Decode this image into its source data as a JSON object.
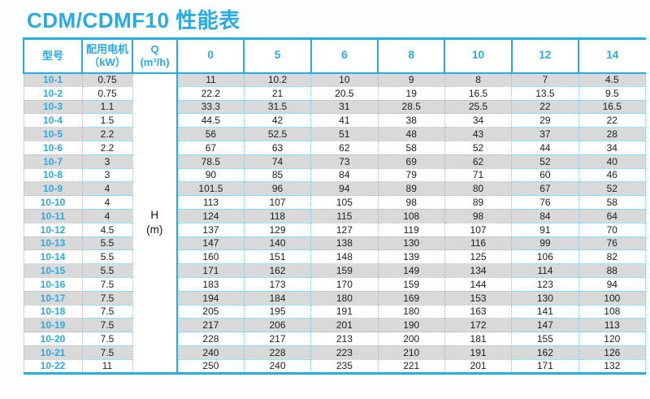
{
  "page": {
    "title": "CDM/CDMF10 性能表"
  },
  "table": {
    "headers": {
      "model": "型号",
      "motor_line1": "配用电机",
      "motor_line2": "（kW）",
      "q_line1": "Q",
      "q_line2": "(m³/h)",
      "flow_rates": [
        "0",
        "5",
        "6",
        "8",
        "10",
        "12",
        "14"
      ]
    },
    "h_unit_line1": "H",
    "h_unit_line2": "(m)",
    "rows": [
      {
        "model": "10-1",
        "kw": "0.75",
        "values": [
          "11",
          "10.2",
          "10",
          "9",
          "8",
          "7",
          "4.5"
        ]
      },
      {
        "model": "10-2",
        "kw": "0.75",
        "values": [
          "22.2",
          "21",
          "20.5",
          "19",
          "16.5",
          "13.5",
          "9.5"
        ]
      },
      {
        "model": "10-3",
        "kw": "1.1",
        "values": [
          "33.3",
          "31.5",
          "31",
          "28.5",
          "25.5",
          "22",
          "16.5"
        ]
      },
      {
        "model": "10-4",
        "kw": "1.5",
        "values": [
          "44.5",
          "42",
          "41",
          "38",
          "34",
          "29",
          "22"
        ]
      },
      {
        "model": "10-5",
        "kw": "2.2",
        "values": [
          "56",
          "52.5",
          "51",
          "48",
          "43",
          "37",
          "28"
        ]
      },
      {
        "model": "10-6",
        "kw": "2.2",
        "values": [
          "67",
          "63",
          "62",
          "58",
          "52",
          "44",
          "34"
        ]
      },
      {
        "model": "10-7",
        "kw": "3",
        "values": [
          "78.5",
          "74",
          "73",
          "69",
          "62",
          "52",
          "40"
        ]
      },
      {
        "model": "10-8",
        "kw": "3",
        "values": [
          "90",
          "85",
          "84",
          "79",
          "71",
          "60",
          "46"
        ]
      },
      {
        "model": "10-9",
        "kw": "4",
        "values": [
          "101.5",
          "96",
          "94",
          "89",
          "80",
          "67",
          "52"
        ]
      },
      {
        "model": "10-10",
        "kw": "4",
        "values": [
          "113",
          "107",
          "105",
          "98",
          "89",
          "76",
          "58"
        ]
      },
      {
        "model": "10-11",
        "kw": "4",
        "values": [
          "124",
          "118",
          "115",
          "108",
          "98",
          "84",
          "64"
        ]
      },
      {
        "model": "10-12",
        "kw": "4.5",
        "values": [
          "137",
          "129",
          "127",
          "119",
          "107",
          "91",
          "70"
        ]
      },
      {
        "model": "10-13",
        "kw": "5.5",
        "values": [
          "147",
          "140",
          "138",
          "130",
          "116",
          "99",
          "76"
        ]
      },
      {
        "model": "10-14",
        "kw": "5.5",
        "values": [
          "160",
          "151",
          "148",
          "139",
          "125",
          "106",
          "82"
        ]
      },
      {
        "model": "10-15",
        "kw": "5.5",
        "values": [
          "171",
          "162",
          "159",
          "149",
          "134",
          "114",
          "88"
        ]
      },
      {
        "model": "10-16",
        "kw": "7.5",
        "values": [
          "183",
          "173",
          "170",
          "159",
          "144",
          "123",
          "94"
        ]
      },
      {
        "model": "10-17",
        "kw": "7.5",
        "values": [
          "194",
          "184",
          "180",
          "169",
          "153",
          "130",
          "100"
        ]
      },
      {
        "model": "10-18",
        "kw": "7.5",
        "values": [
          "205",
          "195",
          "191",
          "180",
          "163",
          "141",
          "108"
        ]
      },
      {
        "model": "10-19",
        "kw": "7.5",
        "values": [
          "217",
          "206",
          "201",
          "190",
          "172",
          "147",
          "113"
        ]
      },
      {
        "model": "10-20",
        "kw": "7.5",
        "values": [
          "228",
          "217",
          "213",
          "200",
          "181",
          "155",
          "120"
        ]
      },
      {
        "model": "10-21",
        "kw": "7.5",
        "values": [
          "240",
          "228",
          "223",
          "210",
          "191",
          "162",
          "126"
        ]
      },
      {
        "model": "10-22",
        "kw": "11",
        "values": [
          "250",
          "240",
          "235",
          "221",
          "201",
          "171",
          "132"
        ]
      }
    ]
  },
  "colors": {
    "accent": "#29abe2",
    "stripe_gray": "#d9d9d9",
    "dotted_line": "#74cdf0",
    "value_text": "#1c1c1c",
    "background": "#ffffff"
  }
}
